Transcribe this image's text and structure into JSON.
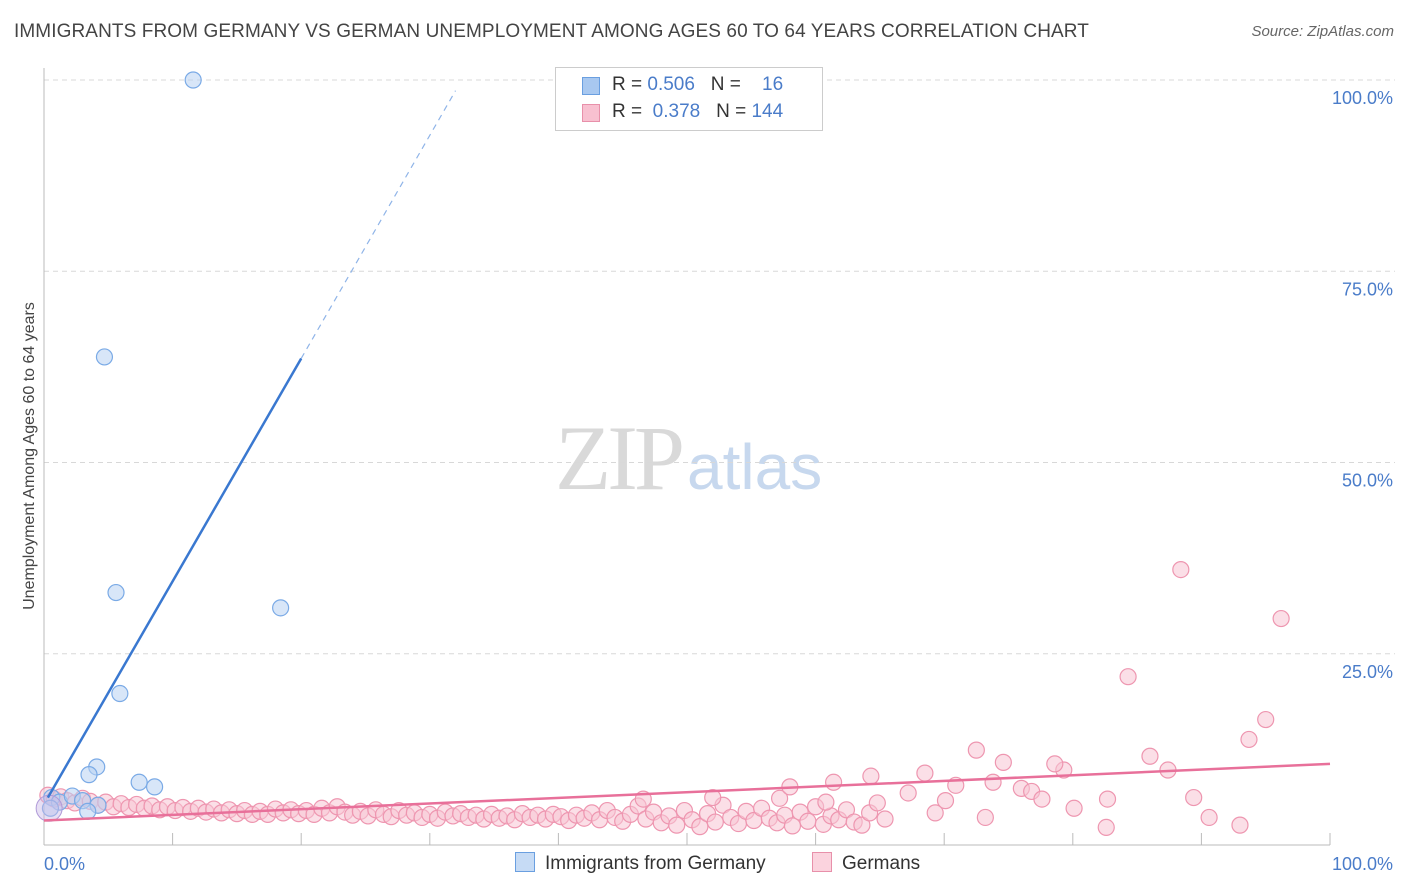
{
  "title": "IMMIGRANTS FROM GERMANY VS GERMAN UNEMPLOYMENT AMONG AGES 60 TO 64 YEARS CORRELATION CHART",
  "source": "Source: ZipAtlas.com",
  "watermark": {
    "zip": "ZIP",
    "atlas": "atlas"
  },
  "legend": {
    "r_label": "R =",
    "n_label": "N =",
    "rows": [
      {
        "r": "0.506",
        "n": "16",
        "color": "#a8c8f0",
        "border": "#6a9fe0"
      },
      {
        "r": "0.378",
        "n": "144",
        "color": "#f8c0d0",
        "border": "#e890aa"
      }
    ]
  },
  "bottom_legend": [
    {
      "label": "Immigrants from Germany",
      "color": "#c6dbf5",
      "border": "#6a9fe0"
    },
    {
      "label": "Germans",
      "color": "#fbd3de",
      "border": "#e890aa"
    }
  ],
  "chart_data": {
    "type": "scatter",
    "title": "IMMIGRANTS FROM GERMANY VS GERMAN UNEMPLOYMENT AMONG AGES 60 TO 64 YEARS CORRELATION CHART",
    "xlabel": "",
    "ylabel": "Unemployment Among Ages 60 to 64 years",
    "xlim": [
      0,
      100
    ],
    "ylim": [
      0,
      100
    ],
    "x_tick_labels": [
      {
        "value": 0,
        "label": "0.0%"
      },
      {
        "value": 100,
        "label": "100.0%"
      }
    ],
    "y_tick_labels": [
      {
        "value": 100,
        "label": "100.0%"
      },
      {
        "value": 75,
        "label": "75.0%"
      },
      {
        "value": 50,
        "label": "50.0%"
      },
      {
        "value": 25,
        "label": "25.0%"
      }
    ],
    "series": [
      {
        "name": "Immigrants from Germany",
        "color": "#7aaae6",
        "fill": "#b8d2f2",
        "trend": {
          "x0": 0.3,
          "y0": 6.2,
          "x1": 20.0,
          "y1": 63.6,
          "dash_to_x": 32.0,
          "dash_to_y": 98.6,
          "color": "#3a78d0"
        },
        "points": [
          [
            11.6,
            100.0
          ],
          [
            4.7,
            63.8
          ],
          [
            5.6,
            33.0
          ],
          [
            18.4,
            31.0
          ],
          [
            5.9,
            19.8
          ],
          [
            4.1,
            10.2
          ],
          [
            3.5,
            9.2
          ],
          [
            7.4,
            8.2
          ],
          [
            8.6,
            7.6
          ],
          [
            0.6,
            6.2
          ],
          [
            1.2,
            5.6
          ],
          [
            2.2,
            6.4
          ],
          [
            3.0,
            5.8
          ],
          [
            4.2,
            5.2
          ],
          [
            3.4,
            4.4
          ],
          [
            0.5,
            4.8
          ]
        ]
      },
      {
        "name": "Germans",
        "color": "#ee96b0",
        "fill": "#f8c5d3",
        "trend": {
          "x0": 0,
          "y0": 3.2,
          "x1": 100,
          "y1": 10.6,
          "color": "#e8709a"
        },
        "points": [
          [
            0.3,
            6.5
          ],
          [
            0.8,
            6.0
          ],
          [
            1.3,
            6.3
          ],
          [
            1.8,
            5.8
          ],
          [
            2.4,
            5.5
          ],
          [
            3.0,
            6.1
          ],
          [
            3.6,
            5.7
          ],
          [
            4.2,
            5.2
          ],
          [
            4.8,
            5.6
          ],
          [
            5.4,
            5.0
          ],
          [
            6.0,
            5.4
          ],
          [
            6.6,
            4.9
          ],
          [
            7.2,
            5.3
          ],
          [
            7.8,
            4.8
          ],
          [
            8.4,
            5.1
          ],
          [
            9.0,
            4.6
          ],
          [
            9.6,
            5.0
          ],
          [
            10.2,
            4.5
          ],
          [
            10.8,
            4.9
          ],
          [
            11.4,
            4.4
          ],
          [
            12.0,
            4.8
          ],
          [
            12.6,
            4.3
          ],
          [
            13.2,
            4.7
          ],
          [
            13.8,
            4.2
          ],
          [
            14.4,
            4.6
          ],
          [
            15.0,
            4.1
          ],
          [
            15.6,
            4.5
          ],
          [
            16.2,
            4.0
          ],
          [
            16.8,
            4.4
          ],
          [
            17.4,
            4.0
          ],
          [
            18.0,
            4.7
          ],
          [
            18.6,
            4.2
          ],
          [
            19.2,
            4.6
          ],
          [
            19.8,
            4.1
          ],
          [
            20.4,
            4.5
          ],
          [
            21.0,
            4.0
          ],
          [
            21.6,
            4.8
          ],
          [
            22.2,
            4.2
          ],
          [
            22.8,
            5.0
          ],
          [
            23.4,
            4.3
          ],
          [
            24.0,
            3.9
          ],
          [
            24.6,
            4.4
          ],
          [
            25.2,
            3.8
          ],
          [
            25.8,
            4.6
          ],
          [
            26.4,
            4.0
          ],
          [
            27.0,
            3.7
          ],
          [
            27.6,
            4.5
          ],
          [
            28.2,
            3.9
          ],
          [
            28.8,
            4.2
          ],
          [
            29.4,
            3.6
          ],
          [
            30.0,
            4.0
          ],
          [
            30.6,
            3.5
          ],
          [
            31.2,
            4.3
          ],
          [
            31.8,
            3.8
          ],
          [
            32.4,
            4.1
          ],
          [
            33.0,
            3.6
          ],
          [
            33.6,
            3.9
          ],
          [
            34.2,
            3.4
          ],
          [
            34.8,
            4.0
          ],
          [
            35.4,
            3.5
          ],
          [
            36.0,
            3.8
          ],
          [
            36.6,
            3.3
          ],
          [
            37.2,
            4.1
          ],
          [
            37.8,
            3.6
          ],
          [
            38.4,
            3.9
          ],
          [
            39.0,
            3.4
          ],
          [
            39.6,
            4.0
          ],
          [
            40.2,
            3.7
          ],
          [
            40.8,
            3.2
          ],
          [
            41.4,
            3.9
          ],
          [
            42.0,
            3.5
          ],
          [
            42.6,
            4.2
          ],
          [
            43.2,
            3.3
          ],
          [
            43.8,
            4.5
          ],
          [
            44.4,
            3.6
          ],
          [
            45.0,
            3.1
          ],
          [
            45.6,
            4.0
          ],
          [
            46.2,
            5.1
          ],
          [
            46.8,
            3.4
          ],
          [
            47.4,
            4.3
          ],
          [
            48.0,
            2.9
          ],
          [
            48.6,
            3.8
          ],
          [
            49.2,
            2.6
          ],
          [
            49.8,
            4.5
          ],
          [
            50.4,
            3.3
          ],
          [
            51.0,
            2.4
          ],
          [
            51.6,
            4.1
          ],
          [
            52.2,
            3.0
          ],
          [
            52.8,
            5.2
          ],
          [
            53.4,
            3.6
          ],
          [
            54.0,
            2.8
          ],
          [
            54.6,
            4.4
          ],
          [
            55.2,
            3.2
          ],
          [
            55.8,
            4.8
          ],
          [
            56.4,
            3.5
          ],
          [
            57.0,
            2.9
          ],
          [
            57.6,
            3.9
          ],
          [
            58.2,
            2.5
          ],
          [
            58.8,
            4.3
          ],
          [
            59.4,
            3.1
          ],
          [
            60.0,
            5.0
          ],
          [
            60.6,
            2.7
          ],
          [
            61.2,
            3.8
          ],
          [
            61.8,
            3.3
          ],
          [
            62.4,
            4.6
          ],
          [
            63.0,
            3.0
          ],
          [
            63.6,
            2.6
          ],
          [
            64.2,
            4.2
          ],
          [
            64.8,
            5.5
          ],
          [
            65.4,
            3.4
          ],
          [
            46.6,
            6.0
          ],
          [
            52.0,
            6.2
          ],
          [
            57.2,
            6.1
          ],
          [
            60.8,
            5.6
          ],
          [
            64.3,
            9.0
          ],
          [
            68.5,
            9.4
          ],
          [
            70.1,
            5.8
          ],
          [
            72.5,
            12.4
          ],
          [
            73.8,
            8.2
          ],
          [
            76.0,
            7.4
          ],
          [
            58.0,
            7.6
          ],
          [
            61.4,
            8.2
          ],
          [
            67.2,
            6.8
          ],
          [
            70.9,
            7.8
          ],
          [
            74.6,
            10.8
          ],
          [
            76.8,
            7.0
          ],
          [
            77.6,
            6.0
          ],
          [
            79.3,
            9.8
          ],
          [
            69.3,
            4.2
          ],
          [
            73.2,
            3.6
          ],
          [
            82.7,
            6.0
          ],
          [
            86.0,
            11.6
          ],
          [
            87.4,
            9.8
          ],
          [
            89.4,
            6.2
          ],
          [
            93.7,
            13.8
          ],
          [
            95.0,
            16.4
          ],
          [
            78.6,
            10.6
          ],
          [
            80.1,
            4.8
          ],
          [
            90.6,
            3.6
          ],
          [
            93.0,
            2.6
          ],
          [
            84.3,
            22.0
          ],
          [
            88.4,
            36.0
          ],
          [
            96.2,
            29.6
          ],
          [
            82.6,
            2.3
          ]
        ]
      }
    ]
  }
}
